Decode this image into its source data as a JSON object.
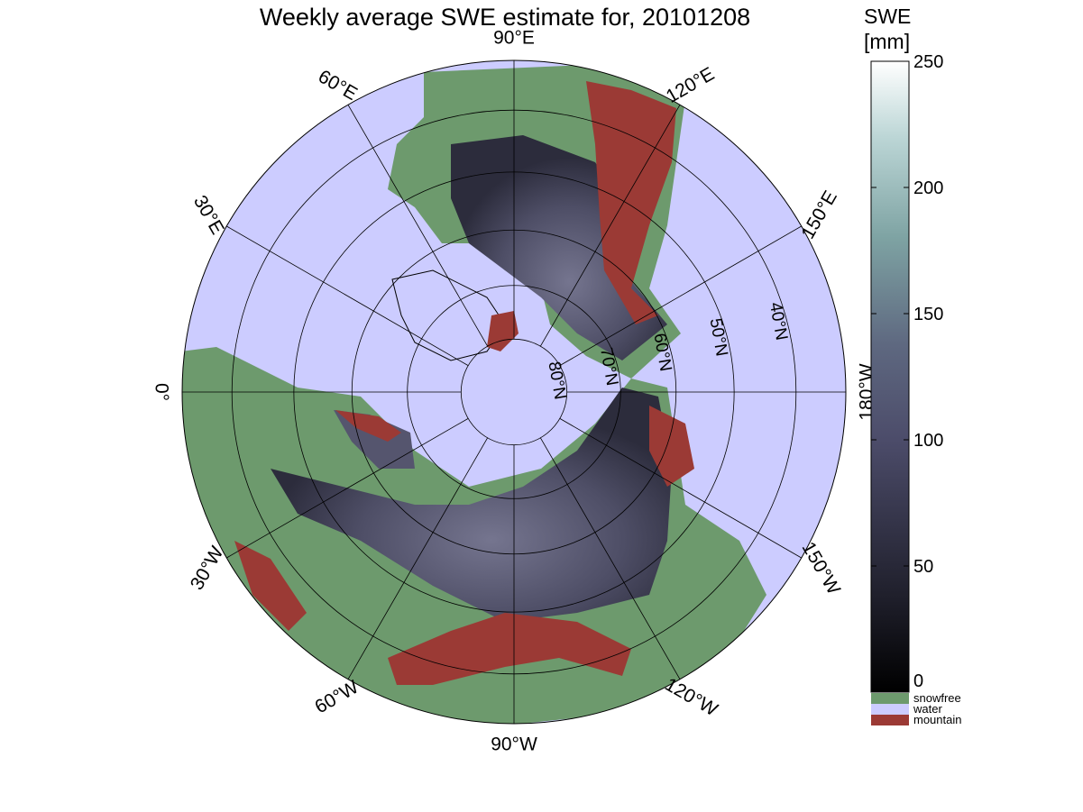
{
  "title": "Weekly average SWE estimate for, 20101208",
  "colorbar": {
    "title_line1": "SWE",
    "title_line2": "[mm]",
    "ticks": [
      "0",
      "50",
      "100",
      "150",
      "200",
      "250"
    ],
    "tick_values": [
      0,
      50,
      100,
      150,
      200,
      250
    ],
    "range": [
      0,
      250
    ],
    "categories": [
      {
        "label": "snowfree",
        "color": "#6d9a6d"
      },
      {
        "label": "water",
        "color": "#ccccff"
      },
      {
        "label": "mountain",
        "color": "#9b3a35"
      }
    ]
  },
  "map": {
    "projection": "north polar stereographic",
    "colors": {
      "water": "#ccccff",
      "snowfree": "#6d9a6d",
      "mountain": "#9b3a35",
      "swe_low": "#2a2a3a",
      "swe_mid": "#55556e"
    },
    "longitude_labels": [
      {
        "text": "90°W",
        "lon": -90
      },
      {
        "text": "120°W",
        "lon": -120
      },
      {
        "text": "150°W",
        "lon": -150
      },
      {
        "text": "180°W",
        "lon": 180
      },
      {
        "text": "150°E",
        "lon": 150
      },
      {
        "text": "120°E",
        "lon": 120
      },
      {
        "text": "90°E",
        "lon": 90
      },
      {
        "text": "60°E",
        "lon": 60
      },
      {
        "text": "30°E",
        "lon": 30
      },
      {
        "text": "0°",
        "lon": 0
      },
      {
        "text": "30°W",
        "lon": -30
      },
      {
        "text": "60°W",
        "lon": -60
      }
    ],
    "latitude_labels": [
      {
        "text": "80°N",
        "lat": 80
      },
      {
        "text": "70°N",
        "lat": 70
      },
      {
        "text": "60°N",
        "lat": 60
      },
      {
        "text": "50°N",
        "lat": 50
      },
      {
        "text": "40°N",
        "lat": 40
      }
    ]
  }
}
